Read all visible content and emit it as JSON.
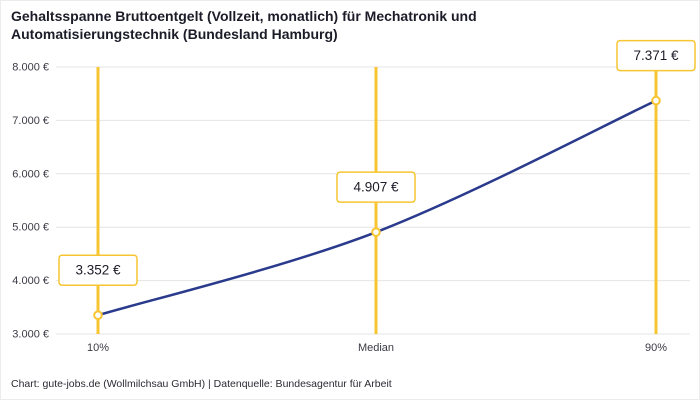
{
  "title_lines": [
    "Gehaltsspanne Bruttoentgelt (Vollzeit, monatlich) für Mechatronik und",
    "Automatisierungstechnik (Bundesland Hamburg)"
  ],
  "footer": "Chart: gute-jobs.de (Wollmilchsau GmbH) | Datenquelle: Bundesagentur für Arbeit",
  "chart_data": {
    "type": "line",
    "categories": [
      "10%",
      "Median",
      "90%"
    ],
    "values": [
      3352,
      4907,
      7371
    ],
    "value_labels": [
      "3.352 €",
      "4.907 €",
      "7.371 €"
    ],
    "ylim": [
      3000,
      8000
    ],
    "y_ticks": [
      3000,
      4000,
      5000,
      6000,
      7000,
      8000
    ],
    "y_tick_labels": [
      "3.000 €",
      "4.000 €",
      "5.000 €",
      "6.000 €",
      "7.000 €",
      "8.000 €"
    ],
    "grid": true,
    "legend": "none",
    "colors": {
      "line": "#2a3a8c",
      "accent": "#f7c531",
      "grid": "#e4e4e4",
      "label_text": "#1c1c28",
      "tick_text": "#3a3a45",
      "background": "#ffffff"
    }
  }
}
